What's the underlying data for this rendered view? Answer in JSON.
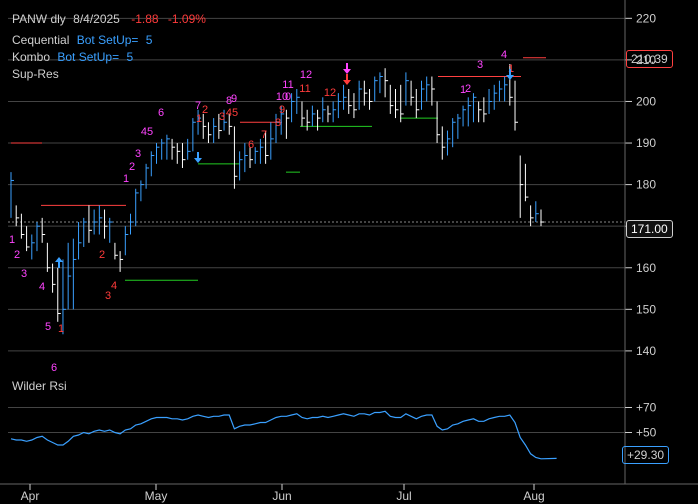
{
  "header": {
    "symbol": "PANW dly",
    "date": "8/4/2025",
    "change": "-1.88",
    "change_pct": "-1.09%"
  },
  "indicators": [
    {
      "name": "Cequential",
      "value_label": "Bot SetUp=",
      "value": "5"
    },
    {
      "name": "Kombo",
      "value_label": "Bot SetUp=",
      "value": "5"
    },
    {
      "name": "Sup-Res"
    }
  ],
  "rsi_panel": {
    "title": "Wilder Rsi"
  },
  "colors": {
    "bg": "#000000",
    "up": "#3aa0ff",
    "down": "#ffffff",
    "grid": "#444444",
    "resistance": "#ff4040",
    "support": "#22cc22",
    "magenta": "#ff44ff",
    "red": "#ff3b3b"
  },
  "chart_data": {
    "type": "ohlc",
    "x_labels": [
      "Apr",
      "May",
      "Jun",
      "Jul",
      "Aug"
    ],
    "price_axis": {
      "ticks": [
        140,
        150,
        160,
        170,
        180,
        190,
        200,
        210,
        220
      ],
      "ylim": [
        133,
        222
      ],
      "markers": [
        {
          "label": "210.39",
          "value": 210.39,
          "style": "red"
        },
        {
          "label": "171.00",
          "value": 171.0,
          "style": "grey"
        }
      ]
    },
    "rsi_axis": {
      "ticks": [
        {
          "label": "+70",
          "value": 70
        },
        {
          "label": "+50",
          "value": 50
        }
      ],
      "markers": [
        {
          "label": "+29.30",
          "value": 29.3
        }
      ],
      "ylim": [
        20,
        80
      ]
    },
    "price_bars": [
      [
        183,
        172,
        181
      ],
      [
        175,
        170,
        172
      ],
      [
        173,
        167,
        168
      ],
      [
        170,
        164,
        165
      ],
      [
        168,
        162,
        166
      ],
      [
        171,
        164,
        170
      ],
      [
        172,
        166,
        168
      ],
      [
        166,
        159,
        160
      ],
      [
        161,
        154,
        156
      ],
      [
        160,
        147,
        149
      ],
      [
        162,
        144,
        150
      ],
      [
        166,
        150,
        158
      ],
      [
        167,
        150,
        162
      ],
      [
        171,
        162,
        166
      ],
      [
        172,
        165,
        171
      ],
      [
        175,
        166,
        169
      ],
      [
        174,
        168,
        171
      ],
      [
        175,
        168,
        172
      ],
      [
        174,
        167,
        170
      ],
      [
        172,
        166,
        171
      ],
      [
        166,
        162,
        163
      ],
      [
        164,
        159,
        162
      ],
      [
        170,
        163,
        168
      ],
      [
        173,
        168,
        171
      ],
      [
        179,
        170,
        178
      ],
      [
        181,
        176,
        180
      ],
      [
        185,
        179,
        184
      ],
      [
        188,
        182,
        187
      ],
      [
        190,
        185,
        189
      ],
      [
        191,
        186,
        190
      ],
      [
        192,
        186,
        191
      ],
      [
        191,
        186,
        189
      ],
      [
        190,
        185,
        188
      ],
      [
        190,
        184,
        186
      ],
      [
        191,
        186,
        188
      ],
      [
        196,
        188,
        195
      ],
      [
        198,
        192,
        196
      ],
      [
        197,
        191,
        194
      ],
      [
        195,
        190,
        192
      ],
      [
        196,
        190,
        194
      ],
      [
        197,
        191,
        193
      ],
      [
        198,
        193,
        195
      ],
      [
        197,
        192,
        194
      ],
      [
        194,
        179,
        182
      ],
      [
        188,
        181,
        186
      ],
      [
        190,
        183,
        187
      ],
      [
        189,
        184,
        186
      ],
      [
        189,
        185,
        188
      ],
      [
        191,
        185,
        189
      ],
      [
        193,
        185,
        187
      ],
      [
        195,
        186,
        191
      ],
      [
        197,
        190,
        195
      ],
      [
        199,
        192,
        197
      ],
      [
        198,
        191,
        196
      ],
      [
        202,
        195,
        200
      ],
      [
        203,
        197,
        201
      ],
      [
        200,
        194,
        196
      ],
      [
        198,
        193,
        195
      ],
      [
        199,
        194,
        197
      ],
      [
        198,
        193,
        196
      ],
      [
        201,
        195,
        198
      ],
      [
        199,
        195,
        197
      ],
      [
        200,
        195,
        198
      ],
      [
        202,
        196,
        200
      ],
      [
        204,
        198,
        201
      ],
      [
        203,
        197,
        199
      ],
      [
        202,
        196,
        198
      ],
      [
        205,
        198,
        203
      ],
      [
        205,
        199,
        202
      ],
      [
        203,
        198,
        200
      ],
      [
        206,
        200,
        205
      ],
      [
        207,
        202,
        206
      ],
      [
        208,
        201,
        205
      ],
      [
        204,
        197,
        199
      ],
      [
        203,
        196,
        198
      ],
      [
        204,
        195,
        197
      ],
      [
        207,
        199,
        205
      ],
      [
        205,
        199,
        201
      ],
      [
        203,
        196,
        198
      ],
      [
        205,
        198,
        203
      ],
      [
        206,
        200,
        204
      ],
      [
        206,
        199,
        203
      ],
      [
        200,
        190,
        192
      ],
      [
        194,
        186,
        189
      ],
      [
        193,
        187,
        191
      ],
      [
        196,
        189,
        195
      ],
      [
        197,
        191,
        196
      ],
      [
        199,
        194,
        198
      ],
      [
        201,
        194,
        199
      ],
      [
        202,
        195,
        201
      ],
      [
        200,
        195,
        198
      ],
      [
        201,
        195,
        197
      ],
      [
        203,
        197,
        200
      ],
      [
        204,
        198,
        202
      ],
      [
        205,
        200,
        203
      ],
      [
        206,
        200,
        204
      ],
      [
        209,
        199,
        201
      ],
      [
        205,
        193,
        195
      ],
      [
        187,
        172,
        180
      ],
      [
        185,
        176,
        177
      ],
      [
        175,
        170,
        172
      ],
      [
        176,
        171,
        173
      ],
      [
        174,
        170,
        171
      ]
    ],
    "rsi_values": [
      45,
      44,
      44,
      43,
      44,
      46,
      47,
      44,
      42,
      40,
      40,
      43,
      47,
      48,
      50,
      49,
      51,
      52,
      51,
      52,
      50,
      49,
      52,
      53,
      56,
      57,
      59,
      61,
      62,
      62,
      62,
      61,
      61,
      60,
      61,
      63,
      64,
      63,
      62,
      63,
      63,
      64,
      64,
      53,
      55,
      56,
      56,
      57,
      58,
      58,
      60,
      62,
      63,
      63,
      64,
      65,
      62,
      61,
      62,
      62,
      63,
      62,
      63,
      64,
      65,
      64,
      63,
      65,
      65,
      64,
      66,
      66,
      67,
      63,
      62,
      62,
      65,
      63,
      61,
      63,
      64,
      64,
      55,
      52,
      53,
      56,
      57,
      59,
      60,
      61,
      59,
      59,
      61,
      62,
      63,
      63,
      64,
      58,
      46,
      40,
      33,
      30,
      29
    ]
  }
}
